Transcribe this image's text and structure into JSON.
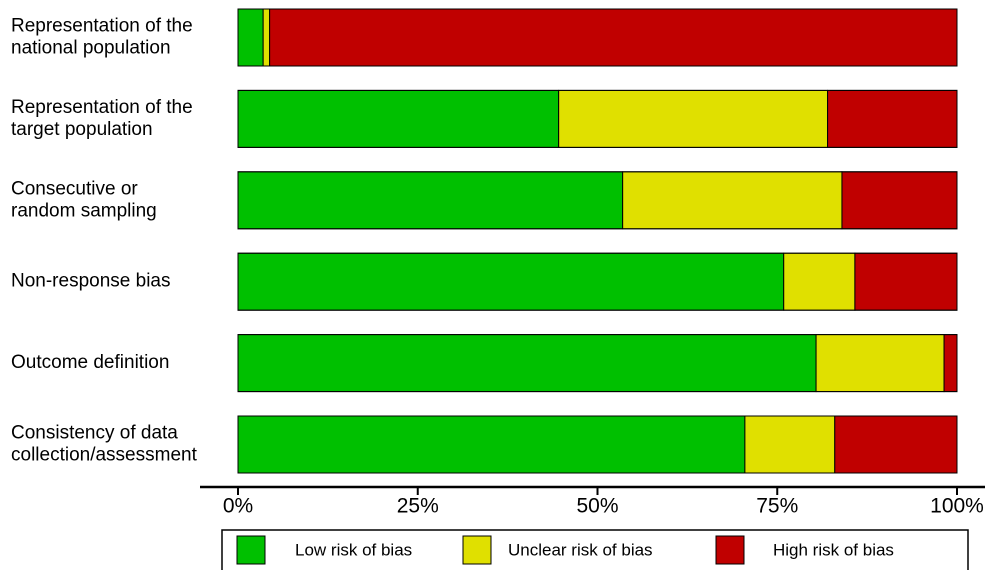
{
  "chart_data": {
    "type": "stacked-bar-horizontal",
    "categories": [
      "Representation of the\nnational population",
      "Representation of the\ntarget population",
      "Consecutive or\nrandom sampling",
      "Non-response bias",
      "Outcome definition",
      "Consistency of data\ncollection/assessment"
    ],
    "series": [
      {
        "name": "Low risk of bias",
        "color": "#00c000",
        "values": [
          3.5,
          44.6,
          53.5,
          75.9,
          80.4,
          70.5
        ]
      },
      {
        "name": "Unclear risk of bias",
        "color": "#e0e000",
        "values": [
          0.9,
          37.4,
          30.5,
          9.9,
          17.8,
          12.5
        ]
      },
      {
        "name": "High risk of bias",
        "color": "#c00000",
        "values": [
          95.6,
          18.0,
          16.0,
          14.2,
          1.8,
          17.0
        ]
      }
    ],
    "xlim": [
      0,
      100
    ],
    "xticks": [
      {
        "value": 0,
        "label": "0%"
      },
      {
        "value": 25,
        "label": "25%"
      },
      {
        "value": 50,
        "label": "50%"
      },
      {
        "value": 75,
        "label": "75%"
      },
      {
        "value": 100,
        "label": "100%"
      }
    ],
    "legend": "bottom"
  }
}
